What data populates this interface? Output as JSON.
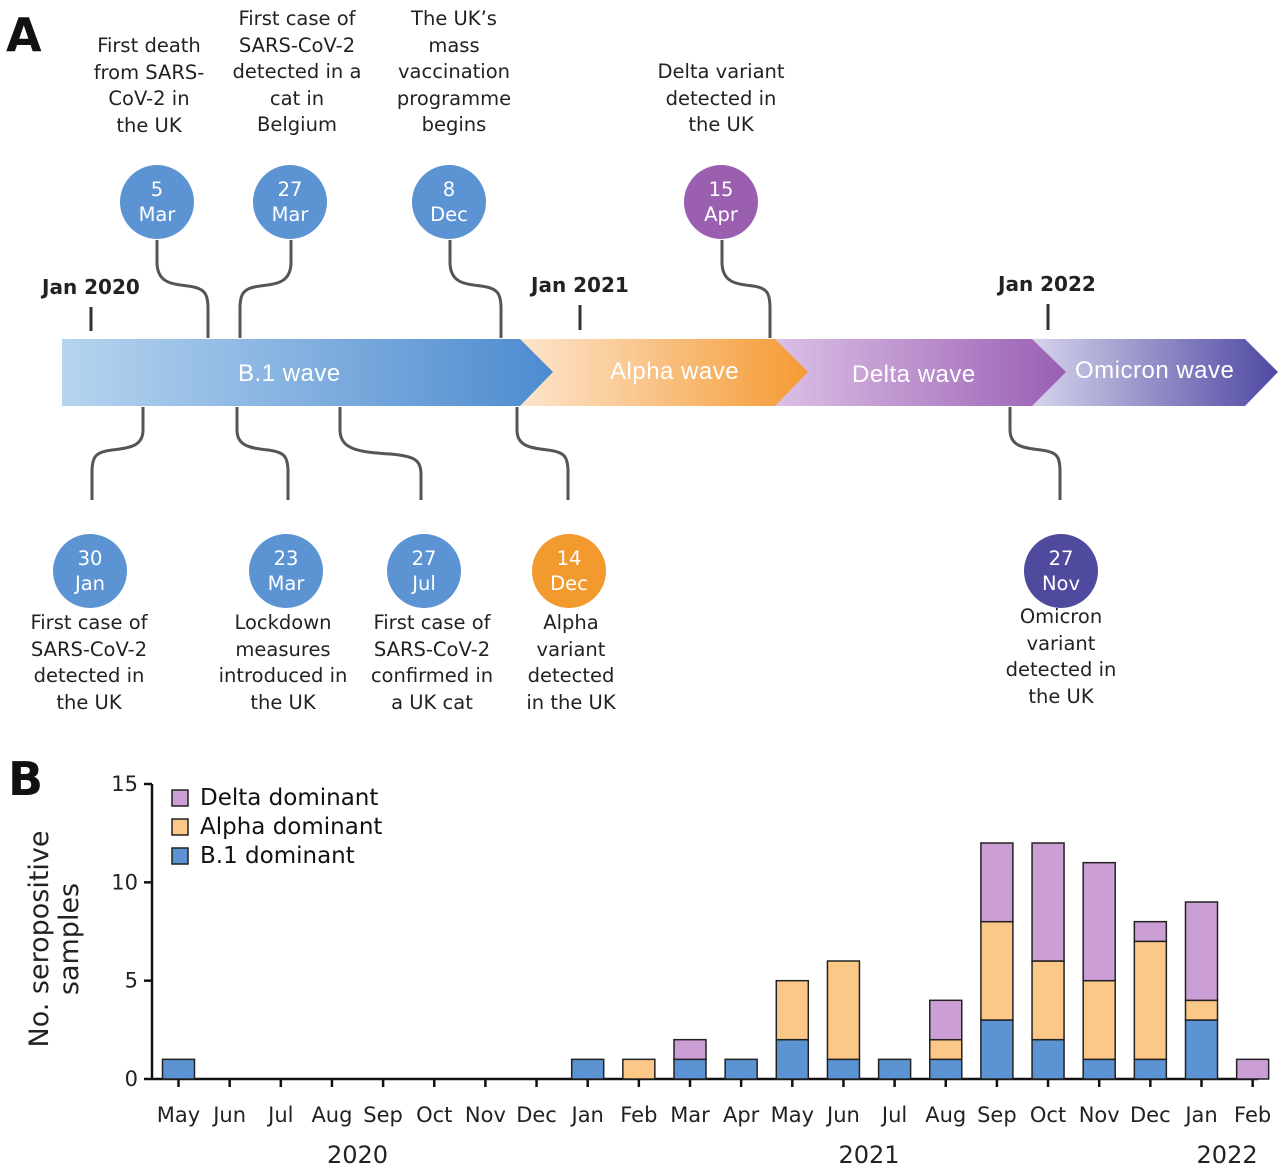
{
  "panel_a": {
    "letter": "A",
    "year_marks": [
      "Jan 2020",
      "Jan 2021",
      "Jan 2022"
    ],
    "waves": [
      "B.1 wave",
      "Alpha wave",
      "Delta wave",
      "Omicron wave"
    ],
    "events_top": [
      {
        "day": "5",
        "month": "Mar",
        "text": "First death\nfrom SARS-\nCoV-2 in\nthe UK",
        "color": "#5b93d3"
      },
      {
        "day": "27",
        "month": "Mar",
        "text": "First case of\nSARS-CoV-2\ndetected in a\ncat in\nBelgium",
        "color": "#5b93d3"
      },
      {
        "day": "8",
        "month": "Dec",
        "text": "The UK’s\nmass\nvaccination\nprogramme\nbegins",
        "color": "#5b93d3"
      },
      {
        "day": "15",
        "month": "Apr",
        "text": "Delta variant\ndetected in\nthe UK",
        "color": "#9b5fb0"
      }
    ],
    "events_bottom": [
      {
        "day": "30",
        "month": "Jan",
        "text": "First case of\nSARS-CoV-2\ndetected in\nthe UK",
        "color": "#5b93d3"
      },
      {
        "day": "23",
        "month": "Mar",
        "text": "Lockdown\nmeasures\nintroduced in\nthe UK",
        "color": "#5b93d3"
      },
      {
        "day": "27",
        "month": "Jul",
        "text": "First case of\nSARS-CoV-2\nconfirmed in\na UK cat",
        "color": "#5b93d3"
      },
      {
        "day": "14",
        "month": "Dec",
        "text": "Alpha\nvariant\ndetected\nin the UK",
        "color": "#f39a2f"
      },
      {
        "day": "27",
        "month": "Nov",
        "text": "Omicron\nvariant\ndetected in\nthe UK",
        "color": "#4f4a9e"
      }
    ]
  },
  "chart_data": {
    "type": "bar",
    "stacked": true,
    "panel_letter": "B",
    "ylabel": "No. seropositive\nsamples",
    "xlabel": "",
    "ylim": [
      0,
      15
    ],
    "yticks": [
      0,
      5,
      10,
      15
    ],
    "categories": [
      "May",
      "Jun",
      "Jul",
      "Aug",
      "Sep",
      "Oct",
      "Nov",
      "Dec",
      "Jan",
      "Feb",
      "Mar",
      "Apr",
      "May",
      "Jun",
      "Jul",
      "Aug",
      "Sep",
      "Oct",
      "Nov",
      "Dec",
      "Jan",
      "Feb"
    ],
    "year_labels": [
      {
        "label": "2020",
        "span": [
          0,
          7
        ]
      },
      {
        "label": "2021",
        "span": [
          8,
          19
        ]
      },
      {
        "label": "2022",
        "span": [
          20,
          21
        ]
      }
    ],
    "series": [
      {
        "name": "B.1 dominant",
        "color": "#5b93d3",
        "values": [
          1,
          0,
          0,
          0,
          0,
          0,
          0,
          0,
          1,
          0,
          1,
          1,
          2,
          1,
          1,
          1,
          3,
          2,
          1,
          1,
          3,
          0
        ]
      },
      {
        "name": "Alpha dominant",
        "color": "#fbc888",
        "values": [
          0,
          0,
          0,
          0,
          0,
          0,
          0,
          0,
          0,
          1,
          0,
          0,
          3,
          5,
          0,
          1,
          5,
          4,
          4,
          6,
          1,
          0
        ]
      },
      {
        "name": "Delta dominant",
        "color": "#cc9ed6",
        "values": [
          0,
          0,
          0,
          0,
          0,
          0,
          0,
          0,
          0,
          0,
          1,
          0,
          0,
          0,
          0,
          2,
          4,
          6,
          6,
          1,
          5,
          1
        ]
      }
    ],
    "legend_order": [
      "Delta dominant",
      "Alpha dominant",
      "B.1 dominant"
    ],
    "legend_position": "top-left",
    "grid": false
  }
}
